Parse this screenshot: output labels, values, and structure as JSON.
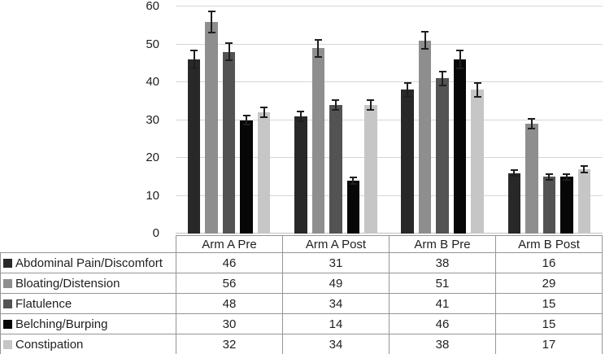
{
  "chart_data": {
    "type": "bar",
    "title": "",
    "categories": [
      "Arm A Pre",
      "Arm A Post",
      "Arm B Pre",
      "Arm B Post"
    ],
    "series": [
      {
        "name": "Abdominal Pain/Discomfort",
        "color": "#282828",
        "values": [
          46,
          31,
          38,
          16
        ],
        "errors": [
          2.5,
          1.5,
          2,
          1
        ]
      },
      {
        "name": "Bloating/Distension",
        "color": "#8e8e8e",
        "values": [
          56,
          49,
          51,
          29
        ],
        "errors": [
          3,
          2.5,
          2.5,
          1.5
        ]
      },
      {
        "name": "Flatulence",
        "color": "#535353",
        "values": [
          48,
          34,
          41,
          15
        ],
        "errors": [
          2.5,
          1.5,
          2,
          1
        ]
      },
      {
        "name": "Belching/Burping",
        "color": "#070707",
        "values": [
          30,
          14,
          46,
          15
        ],
        "errors": [
          1.5,
          1,
          2.5,
          1
        ]
      },
      {
        "name": "Constipation",
        "color": "#c6c6c6",
        "values": [
          32,
          34,
          38,
          17
        ],
        "errors": [
          1.5,
          1.5,
          2,
          1
        ]
      }
    ],
    "xlabel": "",
    "ylabel": "",
    "ylim": [
      0,
      60
    ],
    "ytick_step": 10,
    "ytick_labels": [
      "0",
      "10",
      "20",
      "30",
      "40",
      "50",
      "60"
    ],
    "grid": true,
    "error_bars": true,
    "legend_position": "data-table-left-column"
  },
  "style_colors": {
    "gridline": "#d6d6d6",
    "axis_line": "#c2c2c2",
    "table_border": "#959595",
    "text": "#1f1f1f",
    "error_bar": "#1f1f1f",
    "background": "#ffffff"
  }
}
